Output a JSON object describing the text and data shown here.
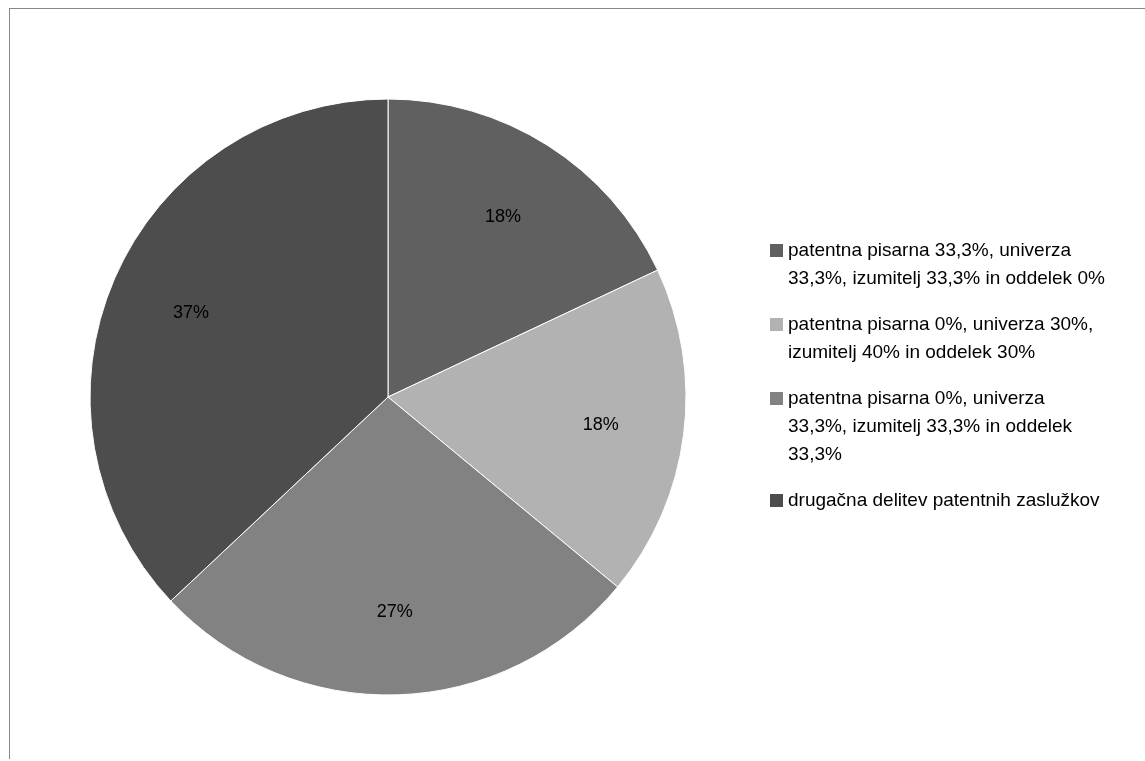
{
  "chart_data": {
    "type": "pie",
    "categories": [
      "patentna pisarna 33,3%, univerza 33,3%, izumitelj 33,3% in oddelek 0%",
      "patentna pisarna 0%, univerza 30%, izumitelj 40% in oddelek 30%",
      "patentna pisarna 0%, univerza 33,3%, izumitelj 33,3% in oddelek 33,3%",
      "drugačna delitev patentnih zaslužkov"
    ],
    "values": [
      18,
      18,
      27,
      37
    ],
    "colors": [
      "#606060",
      "#b2b2b2",
      "#828282",
      "#4d4d4d"
    ],
    "value_labels": [
      "18%",
      "18%",
      "27%",
      "37%"
    ],
    "legend": "right"
  }
}
